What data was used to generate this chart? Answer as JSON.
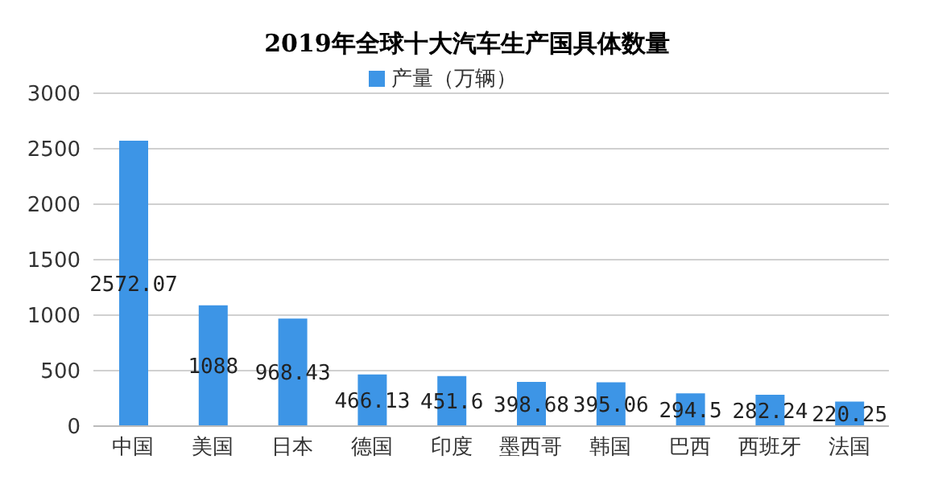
{
  "chart_data": {
    "type": "bar",
    "title": "2019年全球十大汽车生产国具体数量",
    "categories": [
      "中国",
      "美国",
      "日本",
      "德国",
      "印度",
      "墨西哥",
      "韩国",
      "巴西",
      "西班牙",
      "法国"
    ],
    "series": [
      {
        "name": "产量（万辆）",
        "color": "#3d95e6",
        "values": [
          2572.07,
          1088,
          968.43,
          466.13,
          451.6,
          398.68,
          395.06,
          294.5,
          282.24,
          220.25
        ]
      }
    ],
    "ylim": [
      0,
      3000
    ],
    "yticks": [
      0,
      500,
      1000,
      1500,
      2000,
      2500,
      3000
    ],
    "grid": "y",
    "legend": "top",
    "data_labels": true
  }
}
